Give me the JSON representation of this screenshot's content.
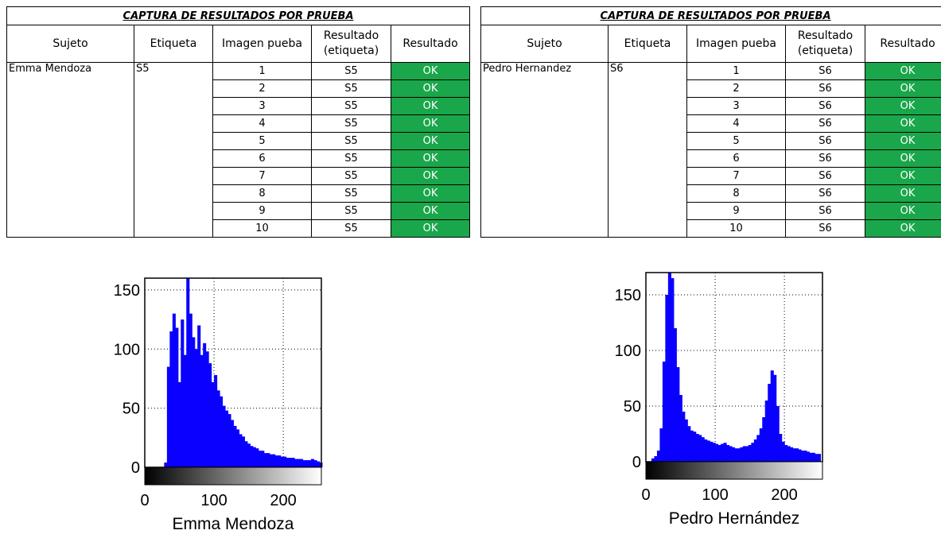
{
  "tables": [
    {
      "title": "CAPTURA DE RESULTADOS POR PRUEBA",
      "headers": {
        "sujeto": "Sujeto",
        "etiqueta": "Etiqueta",
        "imagen": "Imagen pueba",
        "resultado_etiqueta_1": "Resultado",
        "resultado_etiqueta_2": "(etiqueta)",
        "resultado": "Resultado"
      },
      "sujeto": "Emma Mendoza",
      "etiqueta": "S5",
      "rows": [
        {
          "imagen": "1",
          "label": "S5",
          "result": "OK"
        },
        {
          "imagen": "2",
          "label": "S5",
          "result": "OK"
        },
        {
          "imagen": "3",
          "label": "S5",
          "result": "OK"
        },
        {
          "imagen": "4",
          "label": "S5",
          "result": "OK"
        },
        {
          "imagen": "5",
          "label": "S5",
          "result": "OK"
        },
        {
          "imagen": "6",
          "label": "S5",
          "result": "OK"
        },
        {
          "imagen": "7",
          "label": "S5",
          "result": "OK"
        },
        {
          "imagen": "8",
          "label": "S5",
          "result": "OK"
        },
        {
          "imagen": "9",
          "label": "S5",
          "result": "OK"
        },
        {
          "imagen": "10",
          "label": "S5",
          "result": "OK"
        }
      ]
    },
    {
      "title": "CAPTURA DE RESULTADOS POR PRUEBA",
      "headers": {
        "sujeto": "Sujeto",
        "etiqueta": "Etiqueta",
        "imagen": "Imagen pueba",
        "resultado_etiqueta_1": "Resultado",
        "resultado_etiqueta_2": "(etiqueta)",
        "resultado": "Resultado"
      },
      "sujeto": "Pedro Hernandez",
      "etiqueta": "S6",
      "rows": [
        {
          "imagen": "1",
          "label": "S6",
          "result": "OK"
        },
        {
          "imagen": "2",
          "label": "S6",
          "result": "OK"
        },
        {
          "imagen": "3",
          "label": "S6",
          "result": "OK"
        },
        {
          "imagen": "4",
          "label": "S6",
          "result": "OK"
        },
        {
          "imagen": "5",
          "label": "S6",
          "result": "OK"
        },
        {
          "imagen": "6",
          "label": "S6",
          "result": "OK"
        },
        {
          "imagen": "7",
          "label": "S6",
          "result": "OK"
        },
        {
          "imagen": "8",
          "label": "S6",
          "result": "OK"
        },
        {
          "imagen": "9",
          "label": "S6",
          "result": "OK"
        },
        {
          "imagen": "10",
          "label": "S6",
          "result": "OK"
        }
      ]
    }
  ],
  "colors": {
    "ok_fill": "#1aa64a",
    "bar_fill": "#0a00ff"
  },
  "chart_data": [
    {
      "type": "bar",
      "xlabel": "Emma Mendoza",
      "ylabel": "",
      "xlim": [
        0,
        255
      ],
      "ylim": [
        0,
        160
      ],
      "x_ticks": [
        0,
        100,
        200
      ],
      "y_ticks": [
        0,
        50,
        100,
        150
      ],
      "grid": true,
      "colorbar": "grayscale 0-255",
      "x": [
        30,
        34,
        38,
        42,
        46,
        50,
        54,
        58,
        62,
        66,
        70,
        74,
        78,
        82,
        86,
        90,
        94,
        98,
        102,
        106,
        110,
        114,
        118,
        122,
        126,
        130,
        134,
        138,
        142,
        146,
        150,
        154,
        158,
        162,
        166,
        170,
        174,
        178,
        182,
        186,
        190,
        194,
        198,
        202,
        206,
        210,
        214,
        218,
        222,
        226,
        230,
        234,
        238,
        242,
        246,
        250,
        254
      ],
      "values": [
        4,
        85,
        115,
        130,
        118,
        72,
        125,
        95,
        160,
        130,
        110,
        100,
        120,
        95,
        105,
        98,
        88,
        72,
        78,
        65,
        60,
        52,
        48,
        45,
        40,
        35,
        32,
        28,
        26,
        22,
        20,
        18,
        17,
        16,
        14,
        14,
        12,
        12,
        11,
        11,
        10,
        10,
        9,
        9,
        8,
        8,
        8,
        7,
        7,
        7,
        6,
        6,
        6,
        7,
        6,
        5,
        4
      ]
    },
    {
      "type": "bar",
      "xlabel": "Pedro Hernández",
      "ylabel": "",
      "xlim": [
        0,
        255
      ],
      "ylim": [
        0,
        170
      ],
      "x_ticks": [
        0,
        100,
        200
      ],
      "y_ticks": [
        0,
        50,
        100,
        150
      ],
      "grid": true,
      "colorbar": "grayscale 0-255",
      "x": [
        10,
        14,
        18,
        22,
        26,
        30,
        34,
        38,
        42,
        46,
        50,
        54,
        58,
        62,
        66,
        70,
        74,
        78,
        82,
        86,
        90,
        94,
        98,
        102,
        106,
        110,
        114,
        118,
        122,
        126,
        130,
        134,
        138,
        142,
        146,
        150,
        154,
        158,
        162,
        166,
        170,
        174,
        178,
        182,
        186,
        190,
        194,
        198,
        202,
        206,
        210,
        214,
        218,
        222,
        226,
        230,
        234,
        238,
        242,
        246,
        250
      ],
      "values": [
        3,
        5,
        10,
        30,
        90,
        150,
        170,
        165,
        120,
        85,
        60,
        45,
        38,
        32,
        28,
        27,
        25,
        24,
        22,
        20,
        19,
        18,
        17,
        16,
        15,
        16,
        17,
        15,
        14,
        13,
        12,
        12,
        13,
        14,
        14,
        15,
        17,
        20,
        24,
        30,
        40,
        55,
        70,
        82,
        78,
        50,
        25,
        18,
        15,
        14,
        13,
        12,
        12,
        11,
        10,
        10,
        9,
        8,
        8,
        7,
        7
      ]
    }
  ]
}
